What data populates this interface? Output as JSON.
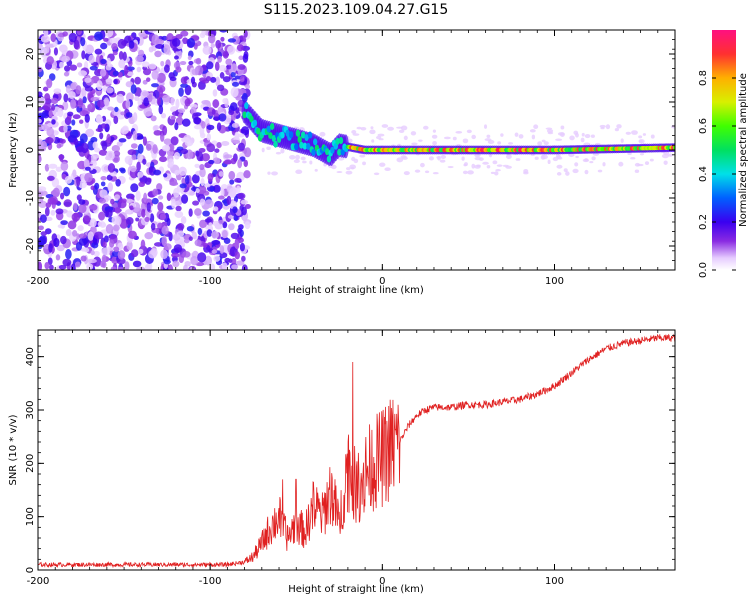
{
  "title": "S115.2023.109.04.27.G15",
  "colors": {
    "snr_line": "#e02020",
    "axis": "#000000",
    "background": "#ffffff"
  },
  "chart_data": [
    {
      "type": "heatmap",
      "name": "spectrogram",
      "xlabel": "Height of straight line (km)",
      "ylabel": "Frequency (Hz)",
      "xlim": [
        -200,
        170
      ],
      "ylim": [
        -25,
        25
      ],
      "xticks": [
        -200,
        -100,
        0,
        100
      ],
      "yticks": [
        -20,
        -10,
        0,
        10,
        20
      ],
      "signal_track": [
        {
          "x": -80,
          "y": 8
        },
        {
          "x": -70,
          "y": 4
        },
        {
          "x": -60,
          "y": 3
        },
        {
          "x": -50,
          "y": 2
        },
        {
          "x": -40,
          "y": 1
        },
        {
          "x": -30,
          "y": -1
        },
        {
          "x": -25,
          "y": 1
        },
        {
          "x": -10,
          "y": 0
        },
        {
          "x": 0,
          "y": 0
        },
        {
          "x": 50,
          "y": 0
        },
        {
          "x": 100,
          "y": 0
        },
        {
          "x": 170,
          "y": 0.5
        }
      ],
      "colorbar": {
        "label": "Normalized spectral amplitude",
        "range": [
          0,
          1
        ],
        "ticks": [
          0.0,
          0.2,
          0.4,
          0.6,
          0.8
        ],
        "tick_labels": [
          "0.0",
          "0.2",
          "0.4",
          "0.6",
          "0.8"
        ]
      }
    },
    {
      "type": "line",
      "name": "snr",
      "xlabel": "Height of straight line (km)",
      "ylabel": "SNR (10 * v/v)",
      "xlim": [
        -200,
        170
      ],
      "ylim": [
        0,
        450
      ],
      "xticks": [
        -200,
        -100,
        0,
        100
      ],
      "yticks": [
        0,
        100,
        200,
        300,
        400
      ],
      "series": [
        {
          "name": "SNR",
          "x": [
            -205,
            -180,
            -150,
            -120,
            -90,
            -80,
            -75,
            -70,
            -65,
            -60,
            -55,
            -50,
            -45,
            -40,
            -35,
            -30,
            -25,
            -20,
            -15,
            -10,
            -5,
            0,
            5,
            10,
            15,
            20,
            25,
            30,
            40,
            50,
            60,
            70,
            80,
            90,
            100,
            110,
            120,
            130,
            140,
            150,
            160,
            170
          ],
          "values": [
            10,
            10,
            10,
            10,
            10,
            15,
            25,
            50,
            80,
            100,
            60,
            90,
            70,
            120,
            100,
            150,
            90,
            200,
            150,
            180,
            200,
            210,
            230,
            240,
            270,
            290,
            300,
            305,
            305,
            310,
            310,
            315,
            320,
            330,
            345,
            370,
            395,
            415,
            425,
            430,
            435,
            435
          ]
        }
      ]
    }
  ]
}
